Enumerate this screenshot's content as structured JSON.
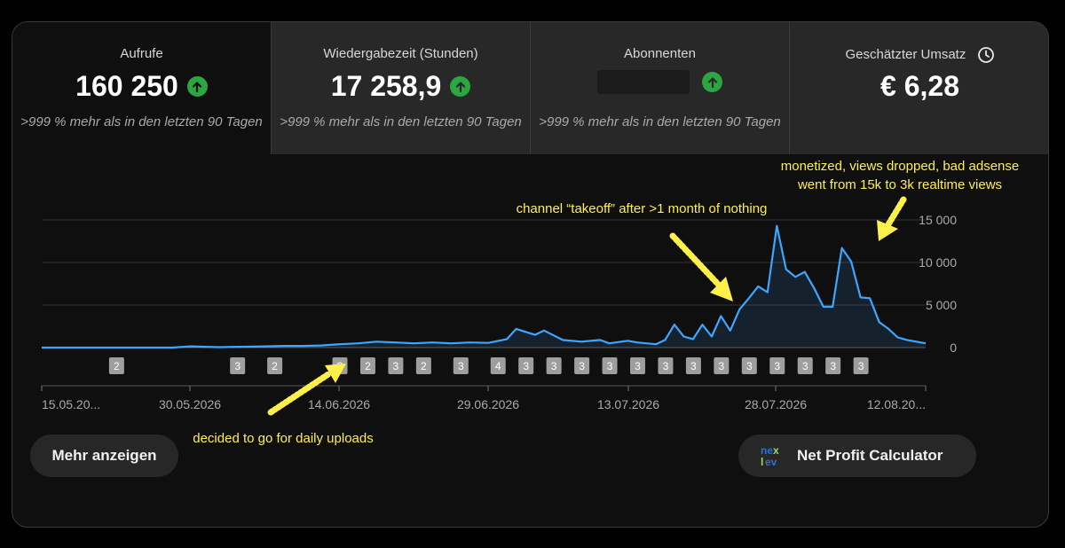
{
  "tabs": [
    {
      "title": "Aufrufe",
      "value": "160 250",
      "sub": ">999 % mehr als in den letzten 90 Tagen",
      "icon": "arrow-up-circle-icon"
    },
    {
      "title": "Wiedergabezeit (Stunden)",
      "value": "17 258,9",
      "sub": ">999 % mehr als in den letzten 90 Tagen",
      "icon": "arrow-up-circle-icon"
    },
    {
      "title": "Abonnenten",
      "value": "",
      "sub": ">999 % mehr als in den letzten 90 Tagen",
      "icon": "arrow-up-circle-icon"
    },
    {
      "title": "Geschätzter Umsatz",
      "value": "€ 6,28",
      "sub": "",
      "icon": "clock-icon"
    }
  ],
  "buttons": {
    "more": "Mehr anzeigen",
    "calc": "Net Profit Calculator",
    "calc_logo": "nexlev-logo"
  },
  "annotations": {
    "takeoff": "channel “takeoff” after >1 month of nothing",
    "monetized_line1": "monetized, views dropped, bad adsense",
    "monetized_line2": "went from 15k to 3k realtime views",
    "daily": "decided to go for daily uploads"
  },
  "colors": {
    "line": "#3ea6ff",
    "upload_badge": "#9e9e9e",
    "annotation": "#fff04a",
    "up_icon": "#2ba640"
  },
  "chart_data": {
    "type": "area",
    "x_ticks": [
      "15.05.20...",
      "30.05.2026",
      "14.06.2026",
      "29.06.2026",
      "13.07.2026",
      "28.07.2026",
      "12.08.20..."
    ],
    "y_ticks": [
      "0",
      "5 000",
      "10 000",
      "15 000"
    ],
    "ylim": [
      0,
      15000
    ],
    "x_start": "2026-05-15",
    "x_end": "2026-08-18",
    "series": [
      {
        "x": [
          "2026-05-15",
          "2026-05-20",
          "2026-05-25",
          "2026-05-29",
          "2026-05-31",
          "2026-06-03",
          "2026-06-06",
          "2026-06-08",
          "2026-06-10",
          "2026-06-12",
          "2026-06-14",
          "2026-06-16",
          "2026-06-18",
          "2026-06-20",
          "2026-06-22",
          "2026-06-24",
          "2026-06-26",
          "2026-06-28",
          "2026-06-30",
          "2026-07-02",
          "2026-07-04",
          "2026-07-05",
          "2026-07-07",
          "2026-07-08",
          "2026-07-10",
          "2026-07-12",
          "2026-07-14",
          "2026-07-15",
          "2026-07-17",
          "2026-07-18",
          "2026-07-20",
          "2026-07-21",
          "2026-07-22",
          "2026-07-23",
          "2026-07-24",
          "2026-07-25",
          "2026-07-26",
          "2026-07-27",
          "2026-07-28",
          "2026-07-29",
          "2026-07-30",
          "2026-07-31",
          "2026-08-01",
          "2026-08-02",
          "2026-08-03",
          "2026-08-04",
          "2026-08-05",
          "2026-08-06",
          "2026-08-07",
          "2026-08-08",
          "2026-08-09",
          "2026-08-10",
          "2026-08-11",
          "2026-08-12",
          "2026-08-13",
          "2026-08-14",
          "2026-08-15",
          "2026-08-16",
          "2026-08-17",
          "2026-08-18"
        ],
        "values": [
          0,
          0,
          0,
          0,
          150,
          50,
          100,
          150,
          200,
          200,
          250,
          400,
          500,
          700,
          600,
          500,
          600,
          500,
          600,
          550,
          1000,
          2200,
          1500,
          2000,
          900,
          700,
          900,
          500,
          800,
          600,
          400,
          900,
          2700,
          1300,
          1000,
          2700,
          1300,
          3700,
          2000,
          4500,
          5800,
          7200,
          6500,
          14300,
          9200,
          8300,
          8900,
          7000,
          4800,
          4800,
          11700,
          10100,
          5900,
          5800,
          3000,
          2200,
          1200,
          900,
          700,
          500
        ]
      }
    ],
    "uploads": [
      {
        "date": "2026-05-23",
        "count": "2"
      },
      {
        "date": "2026-06-05",
        "count": "3"
      },
      {
        "date": "2026-06-09",
        "count": "2"
      },
      {
        "date": "2026-06-16",
        "count": "3"
      },
      {
        "date": "2026-06-19",
        "count": "2"
      },
      {
        "date": "2026-06-22",
        "count": "3"
      },
      {
        "date": "2026-06-25",
        "count": "2"
      },
      {
        "date": "2026-06-29",
        "count": "3"
      },
      {
        "date": "2026-07-03",
        "count": "4"
      },
      {
        "date": "2026-07-06",
        "count": "3"
      },
      {
        "date": "2026-07-09",
        "count": "3"
      },
      {
        "date": "2026-07-12",
        "count": "3"
      },
      {
        "date": "2026-07-15",
        "count": "3"
      },
      {
        "date": "2026-07-18",
        "count": "3"
      },
      {
        "date": "2026-07-21",
        "count": "3"
      },
      {
        "date": "2026-07-24",
        "count": "3"
      },
      {
        "date": "2026-07-27",
        "count": "3"
      },
      {
        "date": "2026-07-30",
        "count": "3"
      },
      {
        "date": "2026-08-02",
        "count": "3"
      },
      {
        "date": "2026-08-05",
        "count": "3"
      },
      {
        "date": "2026-08-08",
        "count": "3"
      },
      {
        "date": "2026-08-11",
        "count": "3"
      }
    ]
  }
}
